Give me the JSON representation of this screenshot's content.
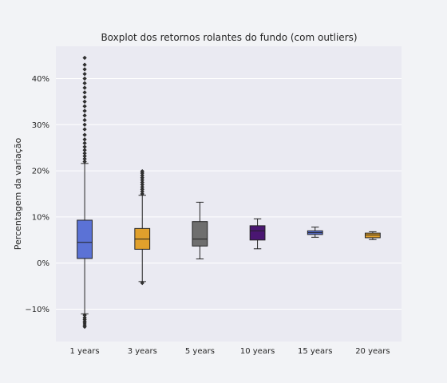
{
  "chart_data": {
    "type": "boxplot",
    "title": "Boxplot dos retornos rolantes do fundo (com outliers)",
    "xlabel": "",
    "ylabel": "Percentagem da variação",
    "grid": true,
    "ylim": [
      -0.17,
      0.47
    ],
    "y_ticks": [
      -0.1,
      0.0,
      0.1,
      0.2,
      0.3,
      0.4
    ],
    "y_tick_labels": [
      "−10%",
      "0%",
      "10%",
      "20%",
      "30%",
      "40%"
    ],
    "categories": [
      "1 years",
      "3 years",
      "5 years",
      "10 years",
      "15 years",
      "20 years"
    ],
    "boxes": [
      {
        "category": "1 years",
        "color": "#5b72d6",
        "whisker_low": -0.11,
        "q1": 0.01,
        "median": 0.045,
        "q3": 0.093,
        "whisker_high": 0.216,
        "outliers": [
          -0.113,
          -0.118,
          -0.122,
          -0.126,
          -0.13,
          -0.134,
          -0.138,
          0.22,
          0.226,
          0.232,
          0.238,
          0.245,
          0.252,
          0.26,
          0.268,
          0.278,
          0.29,
          0.3,
          0.31,
          0.32,
          0.33,
          0.34,
          0.35,
          0.36,
          0.37,
          0.38,
          0.39,
          0.4,
          0.41,
          0.42,
          0.43,
          0.445
        ]
      },
      {
        "category": "3 years",
        "color": "#e0a02c",
        "whisker_low": -0.04,
        "q1": 0.03,
        "median": 0.052,
        "q3": 0.075,
        "whisker_high": 0.147,
        "outliers": [
          -0.043,
          0.15,
          0.155,
          0.16,
          0.165,
          0.17,
          0.175,
          0.18,
          0.185,
          0.19,
          0.195,
          0.199
        ]
      },
      {
        "category": "5 years",
        "color": "#6e6e6e",
        "whisker_low": 0.009,
        "q1": 0.037,
        "median": 0.052,
        "q3": 0.09,
        "whisker_high": 0.132,
        "outliers": []
      },
      {
        "category": "10 years",
        "color": "#4a1672",
        "whisker_low": 0.031,
        "q1": 0.05,
        "median": 0.07,
        "q3": 0.081,
        "whisker_high": 0.096,
        "outliers": []
      },
      {
        "category": "15 years",
        "color": "#5b72d6",
        "whisker_low": 0.056,
        "q1": 0.062,
        "median": 0.066,
        "q3": 0.07,
        "whisker_high": 0.078,
        "outliers": []
      },
      {
        "category": "20 years",
        "color": "#e0a02c",
        "whisker_low": 0.051,
        "q1": 0.055,
        "median": 0.061,
        "q3": 0.065,
        "whisker_high": 0.068,
        "outliers": []
      }
    ]
  }
}
